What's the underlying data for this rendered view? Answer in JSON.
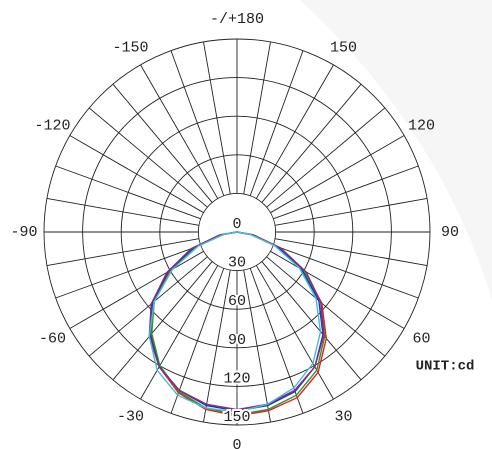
{
  "chart_data": {
    "type": "polar",
    "unit": "UNIT:cd",
    "rlim": [
      0,
      150
    ],
    "rticks": [
      0,
      30,
      60,
      90,
      120,
      150
    ],
    "thetaticks": [
      {
        "value": 180,
        "label": "-/+180"
      },
      150,
      120,
      90,
      60,
      30,
      0,
      -30,
      -60,
      -90,
      -120,
      -150
    ],
    "thetaminorticks": [
      -170,
      -160,
      -140,
      -130,
      -110,
      -100,
      -80,
      -70,
      -50,
      -40,
      -20,
      -10,
      10,
      20,
      40,
      50,
      70,
      80,
      100,
      110,
      130,
      140,
      160,
      170
    ],
    "x": [
      -90,
      -80,
      -70,
      -60,
      -50,
      -40,
      -30,
      -20,
      -10,
      0,
      10,
      20,
      30,
      40,
      50,
      60,
      70,
      80,
      90
    ],
    "series": [
      {
        "color": "#e02020",
        "values": [
          0,
          12,
          35,
          60,
          85,
          104,
          121,
          133,
          140,
          143,
          141,
          137,
          126,
          108,
          86,
          60,
          33,
          11,
          0
        ]
      },
      {
        "color": "#2a9a2a",
        "values": [
          0,
          12,
          34,
          59,
          84,
          103,
          120,
          132,
          139,
          142,
          140,
          135,
          124,
          106,
          85,
          60,
          34,
          12,
          0
        ]
      },
      {
        "color": "#2030c0",
        "values": [
          0,
          13,
          36,
          62,
          86,
          105,
          121,
          131,
          137,
          139,
          137,
          132,
          121,
          104,
          83,
          58,
          33,
          12,
          0
        ]
      },
      {
        "color": "#8a2a8a",
        "values": [
          0,
          14,
          38,
          63,
          87,
          106,
          121,
          131,
          136,
          138,
          136,
          131,
          121,
          105,
          85,
          62,
          36,
          13,
          0
        ]
      },
      {
        "color": "#40c0d0",
        "values": [
          0,
          10,
          32,
          58,
          84,
          106,
          124,
          135,
          139,
          140,
          136,
          129,
          118,
          101,
          80,
          56,
          31,
          10,
          0
        ]
      }
    ]
  }
}
